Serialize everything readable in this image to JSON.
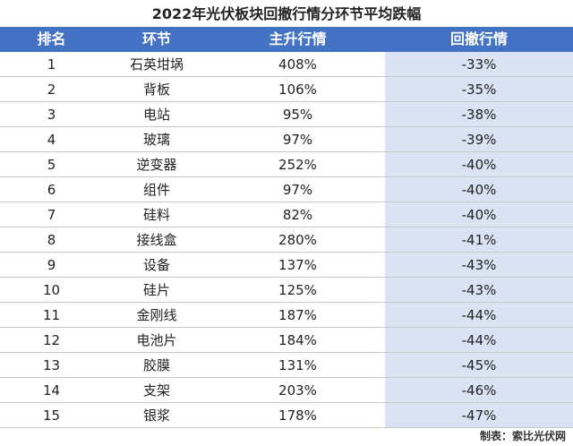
{
  "title": "2022年光伏板块回撤行情分环节平均跌幅",
  "table": {
    "header": [
      "排名",
      "环节",
      "主升行情",
      "回撤行情"
    ],
    "rows": [
      [
        "1",
        "石英坩埚",
        "408%",
        "-33%"
      ],
      [
        "2",
        "背板",
        "106%",
        "-35%"
      ],
      [
        "3",
        "电站",
        "95%",
        "-38%"
      ],
      [
        "4",
        "玻璃",
        "97%",
        "-39%"
      ],
      [
        "5",
        "逆变器",
        "252%",
        "-40%"
      ],
      [
        "6",
        "组件",
        "97%",
        "-40%"
      ],
      [
        "7",
        "硅料",
        "82%",
        "-40%"
      ],
      [
        "8",
        "接线盒",
        "280%",
        "-41%"
      ],
      [
        "9",
        "设备",
        "137%",
        "-43%"
      ],
      [
        "10",
        "硅片",
        "125%",
        "-43%"
      ],
      [
        "11",
        "金刚线",
        "187%",
        "-44%"
      ],
      [
        "12",
        "电池片",
        "184%",
        "-44%"
      ],
      [
        "13",
        "胶膜",
        "131%",
        "-45%"
      ],
      [
        "14",
        "支架",
        "203%",
        "-46%"
      ],
      [
        "15",
        "银浆",
        "178%",
        "-47%"
      ]
    ]
  },
  "footer": "制表：索比光伏网"
}
